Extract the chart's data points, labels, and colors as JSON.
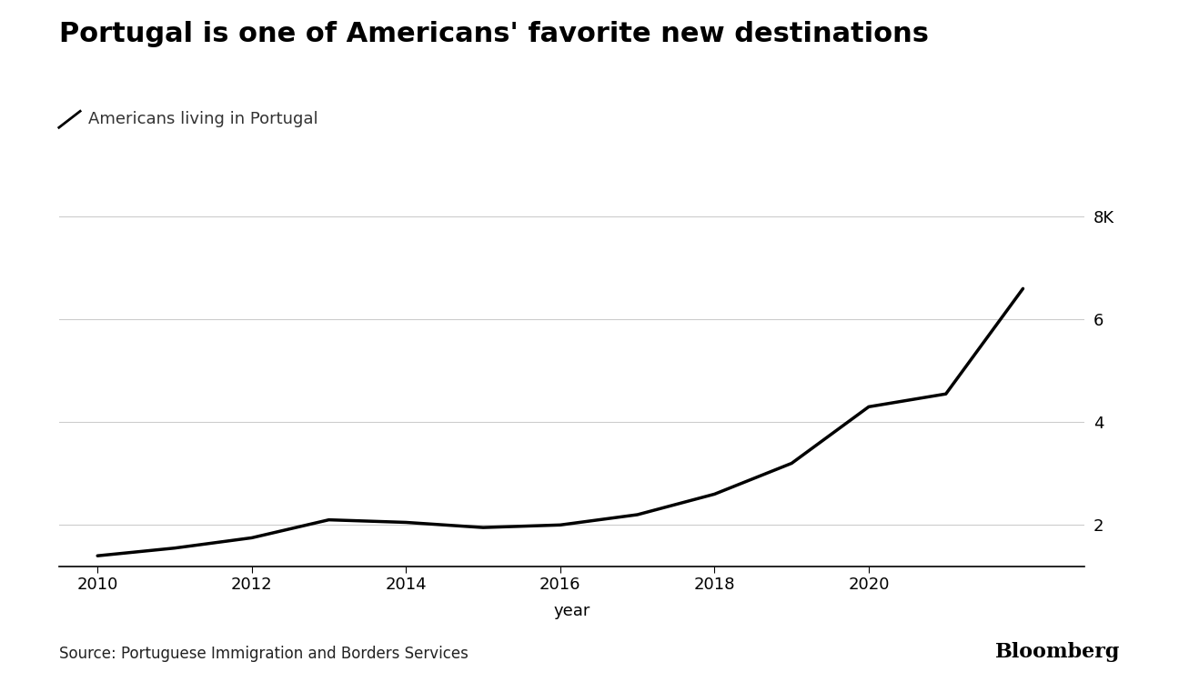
{
  "title": "Portugal is one of Americans' favorite new destinations",
  "legend_label": "Americans living in Portugal",
  "xlabel": "year",
  "source": "Source: Portuguese Immigration and Borders Services",
  "branding": "Bloomberg",
  "years": [
    2010,
    2011,
    2012,
    2013,
    2014,
    2015,
    2016,
    2017,
    2018,
    2019,
    2020,
    2021,
    2022
  ],
  "values": [
    1.4,
    1.55,
    1.75,
    2.1,
    2.05,
    1.95,
    2.0,
    2.2,
    2.6,
    3.2,
    4.3,
    4.55,
    6.6
  ],
  "yticks": [
    2,
    4,
    6,
    8
  ],
  "ytick_labels": [
    "2",
    "4",
    "6",
    "8K"
  ],
  "ylim": [
    1.2,
    8.5
  ],
  "xlim": [
    2009.5,
    2022.8
  ],
  "xticks": [
    2010,
    2012,
    2014,
    2016,
    2018,
    2020
  ],
  "line_color": "#000000",
  "line_width": 2.5,
  "background_color": "#ffffff",
  "grid_color": "#cccccc",
  "title_fontsize": 22,
  "label_fontsize": 13,
  "tick_fontsize": 13,
  "source_fontsize": 12,
  "branding_fontsize": 16
}
